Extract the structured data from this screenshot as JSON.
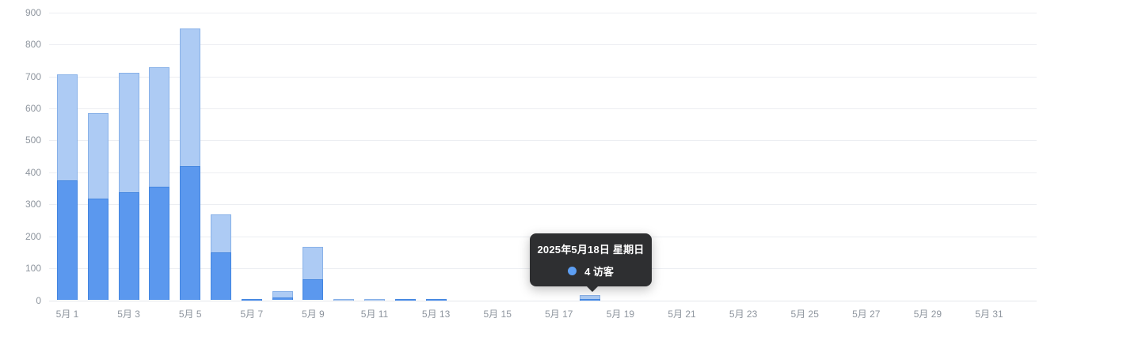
{
  "chart_data": {
    "type": "bar",
    "title": "",
    "bar_mode": "overlap",
    "grid": true,
    "legend": "none",
    "ylim": [
      0,
      900
    ],
    "y_ticks": [
      0,
      100,
      200,
      300,
      400,
      500,
      600,
      700,
      800,
      900
    ],
    "categories": [
      "5月 1",
      "5月 2",
      "5月 3",
      "5月 4",
      "5月 5",
      "5月 6",
      "5月 7",
      "5月 8",
      "5月 9",
      "5月 10",
      "5月 11",
      "5月 12",
      "5月 13",
      "5月 14",
      "5月 15",
      "5月 16",
      "5月 17",
      "5月 18",
      "5月 19",
      "5月 20",
      "5月 21",
      "5月 22",
      "5月 23",
      "5月 24",
      "5月 25",
      "5月 26",
      "5月 27",
      "5月 28",
      "5月 29",
      "5月 30",
      "5月 31"
    ],
    "x_tick_step": 2,
    "series": [
      {
        "name": "",
        "color": "#adcbf4",
        "border_color": "#88b1e8",
        "values": [
          707,
          585,
          712,
          728,
          850,
          268,
          3,
          29,
          168,
          2,
          4,
          3,
          3,
          0,
          0,
          0,
          0,
          15,
          0,
          0,
          0,
          0,
          0,
          0,
          0,
          0,
          0,
          0,
          0,
          0,
          0
        ]
      },
      {
        "name": "访客",
        "color": "#5b98ee",
        "border_color": "#4285e0",
        "values": [
          375,
          318,
          338,
          355,
          420,
          149,
          2,
          9,
          66,
          0,
          0,
          2,
          2,
          0,
          0,
          0,
          0,
          4,
          0,
          0,
          0,
          0,
          0,
          0,
          0,
          0,
          0,
          0,
          0,
          0,
          0
        ]
      }
    ]
  },
  "tooltip": {
    "date": "2025年5月18日 星期日",
    "value_label": "4 访客",
    "dot_color": "#5d9ff3",
    "background": "#2e2f31",
    "target_category": "5月 18"
  },
  "colors": {
    "background": "#ffffff",
    "gridline": "#eceef2",
    "axis_line": "#e5e8ec",
    "axis_label": "#8e959e"
  }
}
